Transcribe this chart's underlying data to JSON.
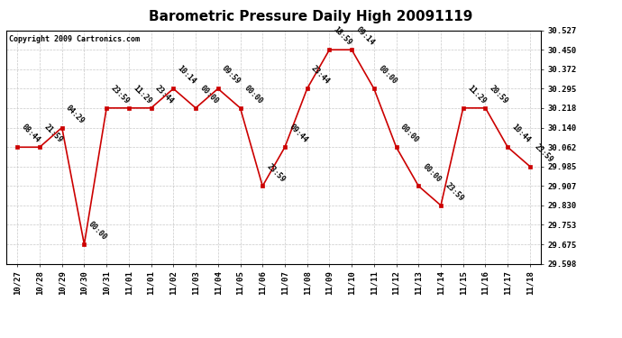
{
  "title": "Barometric Pressure Daily High 20091119",
  "copyright": "Copyright 2009 Cartronics.com",
  "x_labels": [
    "10/27",
    "10/28",
    "10/29",
    "10/30",
    "10/31",
    "11/01",
    "11/01",
    "11/02",
    "11/03",
    "11/04",
    "11/05",
    "11/06",
    "11/07",
    "11/08",
    "11/09",
    "11/10",
    "11/11",
    "11/12",
    "11/13",
    "11/14",
    "11/15",
    "11/16",
    "11/17",
    "11/18"
  ],
  "x_indices": [
    0,
    1,
    2,
    3,
    4,
    5,
    6,
    7,
    8,
    9,
    10,
    11,
    12,
    13,
    14,
    15,
    16,
    17,
    18,
    19,
    20,
    21,
    22,
    23
  ],
  "y_values": [
    30.062,
    30.062,
    30.14,
    29.675,
    30.218,
    30.218,
    30.218,
    30.295,
    30.218,
    30.295,
    30.218,
    29.907,
    30.062,
    30.295,
    30.45,
    30.45,
    30.295,
    30.062,
    29.907,
    29.83,
    30.218,
    30.218,
    30.062,
    29.985
  ],
  "annotations": [
    "08:44",
    "21:59",
    "04:29",
    "00:00",
    "23:59",
    "11:29",
    "23:44",
    "10:14",
    "00:00",
    "09:59",
    "00:00",
    "23:59",
    "09:44",
    "23:44",
    "18:59",
    "09:14",
    "00:00",
    "00:00",
    "00:00",
    "23:59",
    "11:29",
    "20:59",
    "10:44",
    "23:59"
  ],
  "ylim_min": 29.598,
  "ylim_max": 30.527,
  "yticks": [
    29.598,
    29.675,
    29.753,
    29.83,
    29.907,
    29.985,
    30.062,
    30.14,
    30.218,
    30.295,
    30.372,
    30.45,
    30.527
  ],
  "line_color": "#cc0000",
  "marker_color": "#cc0000",
  "bg_color": "#ffffff",
  "plot_bg_color": "#ffffff",
  "grid_color": "#bbbbbb",
  "title_fontsize": 11,
  "copyright_fontsize": 6,
  "annotation_fontsize": 6
}
